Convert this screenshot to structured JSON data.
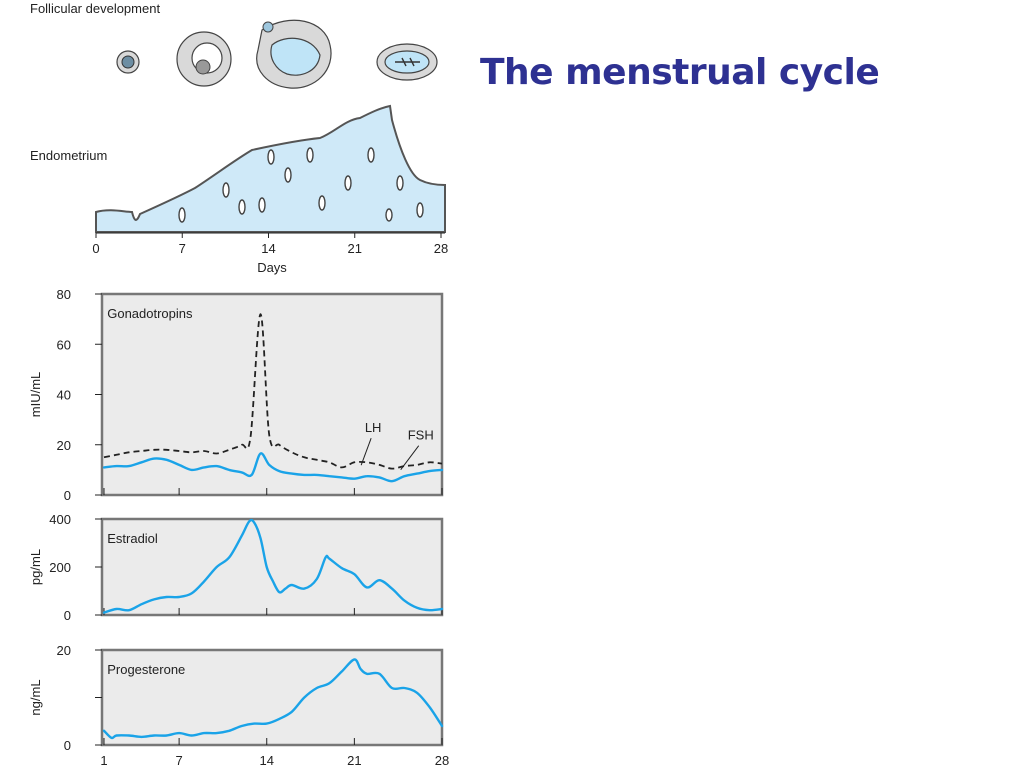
{
  "slide": {
    "title": "The menstrual cycle"
  },
  "illustration": {
    "follicular_label": "Follicular development",
    "endometrium_label": "Endometrium",
    "days_axis": {
      "title": "Days",
      "ticks": [
        "0",
        "7",
        "14",
        "21",
        "28"
      ],
      "range": [
        0,
        28
      ]
    }
  },
  "chart_data": [
    {
      "type": "line",
      "panel_label": "Gonadotropins",
      "ylabel": "mIU/mL",
      "ylim": [
        0,
        80
      ],
      "yticks": [
        "0",
        "20",
        "40",
        "60",
        "80"
      ],
      "xlim": [
        1,
        28
      ],
      "series": [
        {
          "name": "LH",
          "style": "dashed",
          "x": [
            1,
            2,
            3,
            4,
            5,
            6,
            7,
            8,
            9,
            10,
            11,
            12,
            12.7,
            13.5,
            14.2,
            15,
            16,
            17,
            18,
            19,
            20,
            21,
            22,
            23,
            24,
            25,
            26,
            27,
            28
          ],
          "y": [
            15,
            16,
            17,
            17.5,
            18,
            18,
            17.5,
            17,
            17.5,
            16.5,
            18,
            20,
            23,
            72,
            24,
            20,
            17,
            15,
            14,
            13,
            11,
            13,
            13,
            12,
            10.5,
            11.5,
            12,
            13,
            12.5
          ]
        },
        {
          "name": "FSH",
          "style": "solid",
          "x": [
            1,
            2,
            3,
            4,
            5,
            6,
            7,
            8,
            9,
            10,
            11,
            12,
            12.8,
            13.5,
            14.2,
            15,
            16,
            17,
            18,
            19,
            20,
            21,
            22,
            23,
            24,
            25,
            26,
            27,
            28
          ],
          "y": [
            11,
            11.5,
            11.5,
            13,
            14.5,
            14,
            12,
            10,
            11,
            11.5,
            10,
            9,
            8,
            16.5,
            12,
            9.5,
            8.5,
            8,
            8,
            7.5,
            7,
            6.5,
            7.5,
            7,
            5.5,
            7.5,
            8.5,
            9.5,
            10
          ]
        }
      ],
      "annotations": [
        {
          "text": "LH",
          "x": 22.5,
          "y": 25
        },
        {
          "text": "FSH",
          "x": 26.3,
          "y": 22
        }
      ]
    },
    {
      "type": "line",
      "panel_label": "Estradiol",
      "ylabel": "pg/mL",
      "ylim": [
        0,
        400
      ],
      "yticks": [
        "0",
        "200",
        "400"
      ],
      "xlim": [
        1,
        28
      ],
      "series": [
        {
          "name": "Estradiol",
          "style": "solid",
          "x": [
            1,
            2,
            3,
            4,
            5,
            6,
            7,
            8,
            9,
            10,
            11,
            12,
            12.6,
            13,
            13.5,
            14,
            14.5,
            15,
            15.5,
            16,
            17,
            18,
            18.7,
            19,
            20,
            21,
            22,
            23,
            24,
            25,
            26,
            27,
            28
          ],
          "y": [
            10,
            25,
            20,
            45,
            65,
            75,
            75,
            90,
            140,
            200,
            240,
            330,
            390,
            385,
            320,
            200,
            140,
            95,
            110,
            125,
            110,
            150,
            240,
            235,
            195,
            170,
            115,
            145,
            110,
            60,
            30,
            20,
            25
          ]
        }
      ]
    },
    {
      "type": "line",
      "panel_label": "Progesterone",
      "ylabel": "ng/mL",
      "ylim": [
        0,
        20
      ],
      "yticks": [
        "0",
        "",
        "20"
      ],
      "xlim": [
        1,
        28
      ],
      "xticks": [
        "1",
        "7",
        "14",
        "21",
        "28"
      ],
      "series": [
        {
          "name": "Progesterone",
          "style": "solid",
          "x": [
            1,
            1.6,
            2,
            3,
            4,
            5,
            6,
            7,
            8,
            9,
            10,
            11,
            12,
            13,
            14,
            15,
            16,
            17,
            18,
            19,
            20,
            21,
            21.5,
            22,
            23,
            24,
            25,
            26,
            27,
            28
          ],
          "y": [
            3,
            1.5,
            2,
            2,
            1.7,
            2,
            2,
            2.5,
            2,
            2.5,
            2.5,
            3,
            4,
            4.5,
            4.5,
            5.5,
            7,
            10,
            12,
            13,
            15.5,
            18,
            16,
            15,
            15,
            12,
            12,
            11,
            8,
            4
          ]
        }
      ]
    }
  ]
}
